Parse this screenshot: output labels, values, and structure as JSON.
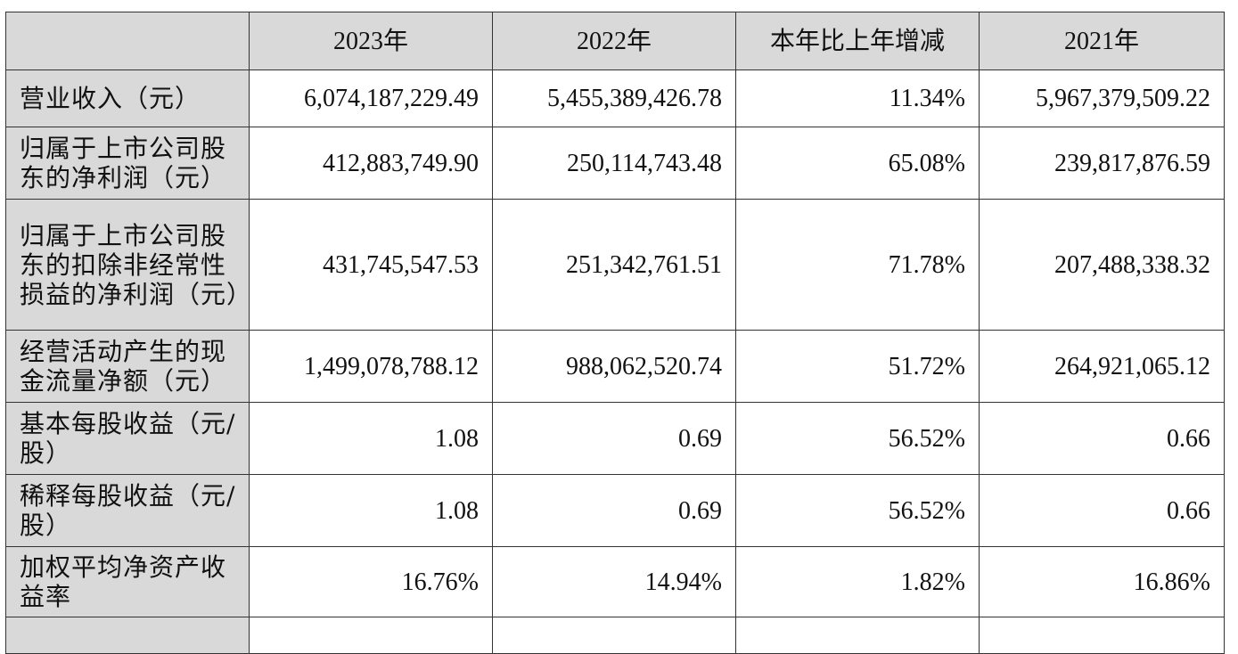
{
  "table": {
    "headers": [
      "",
      "2023年",
      "2022年",
      "本年比上年增减",
      "2021年"
    ],
    "rows": [
      {
        "label": "营业收入（元）",
        "values": [
          "6,074,187,229.49",
          "5,455,389,426.78",
          "11.34%",
          "5,967,379,509.22"
        ]
      },
      {
        "label": "归属于上市公司股东的净利润（元）",
        "values": [
          "412,883,749.90",
          "250,114,743.48",
          "65.08%",
          "239,817,876.59"
        ]
      },
      {
        "label": "归属于上市公司股东的扣除非经常性损益的净利润（元）",
        "values": [
          "431,745,547.53",
          "251,342,761.51",
          "71.78%",
          "207,488,338.32"
        ]
      },
      {
        "label": "经营活动产生的现金流量净额（元）",
        "values": [
          "1,499,078,788.12",
          "988,062,520.74",
          "51.72%",
          "264,921,065.12"
        ]
      },
      {
        "label": "基本每股收益（元/股）",
        "values": [
          "1.08",
          "0.69",
          "56.52%",
          "0.66"
        ]
      },
      {
        "label": "稀释每股收益（元/股）",
        "values": [
          "1.08",
          "0.69",
          "56.52%",
          "0.66"
        ]
      },
      {
        "label": "加权平均净资产收益率",
        "values": [
          "16.76%",
          "14.94%",
          "1.82%",
          "16.86%"
        ]
      }
    ]
  }
}
